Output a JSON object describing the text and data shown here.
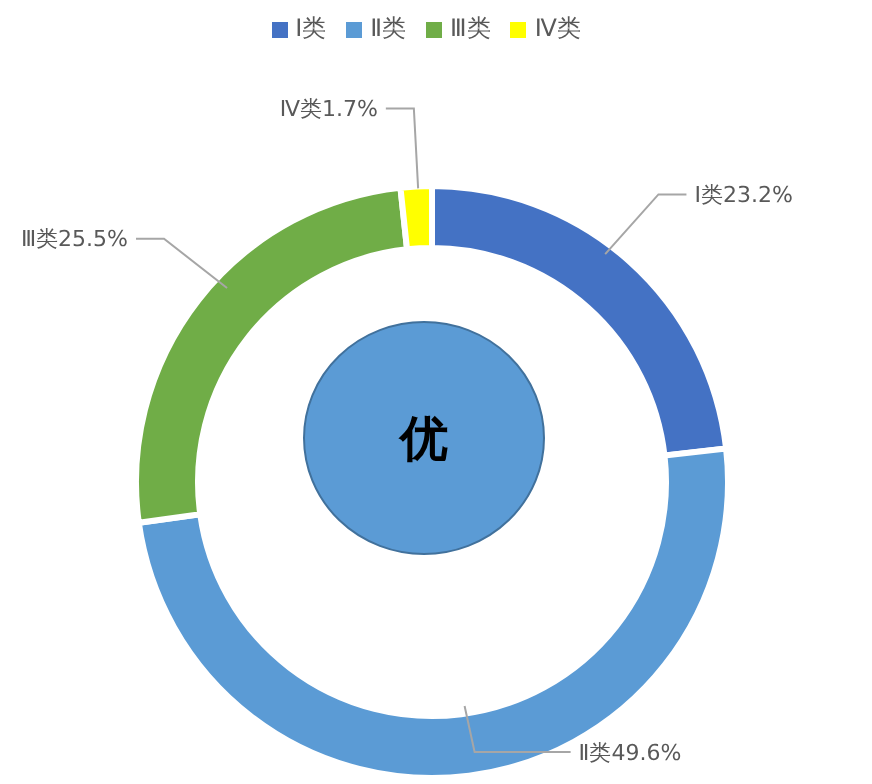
{
  "chart_data": {
    "type": "donut",
    "categories": [
      "Ⅰ类",
      "Ⅱ类",
      "Ⅲ类",
      "Ⅳ类"
    ],
    "values": [
      23.2,
      49.6,
      25.5,
      1.7
    ],
    "value_labels": [
      "23.2%",
      "49.6%",
      "25.5%",
      "1.7%"
    ],
    "colors": [
      "#4472c4",
      "#5b9bd5",
      "#70ad47",
      "#ffff00"
    ],
    "legend": "top",
    "annotations": [
      "优"
    ]
  }
}
